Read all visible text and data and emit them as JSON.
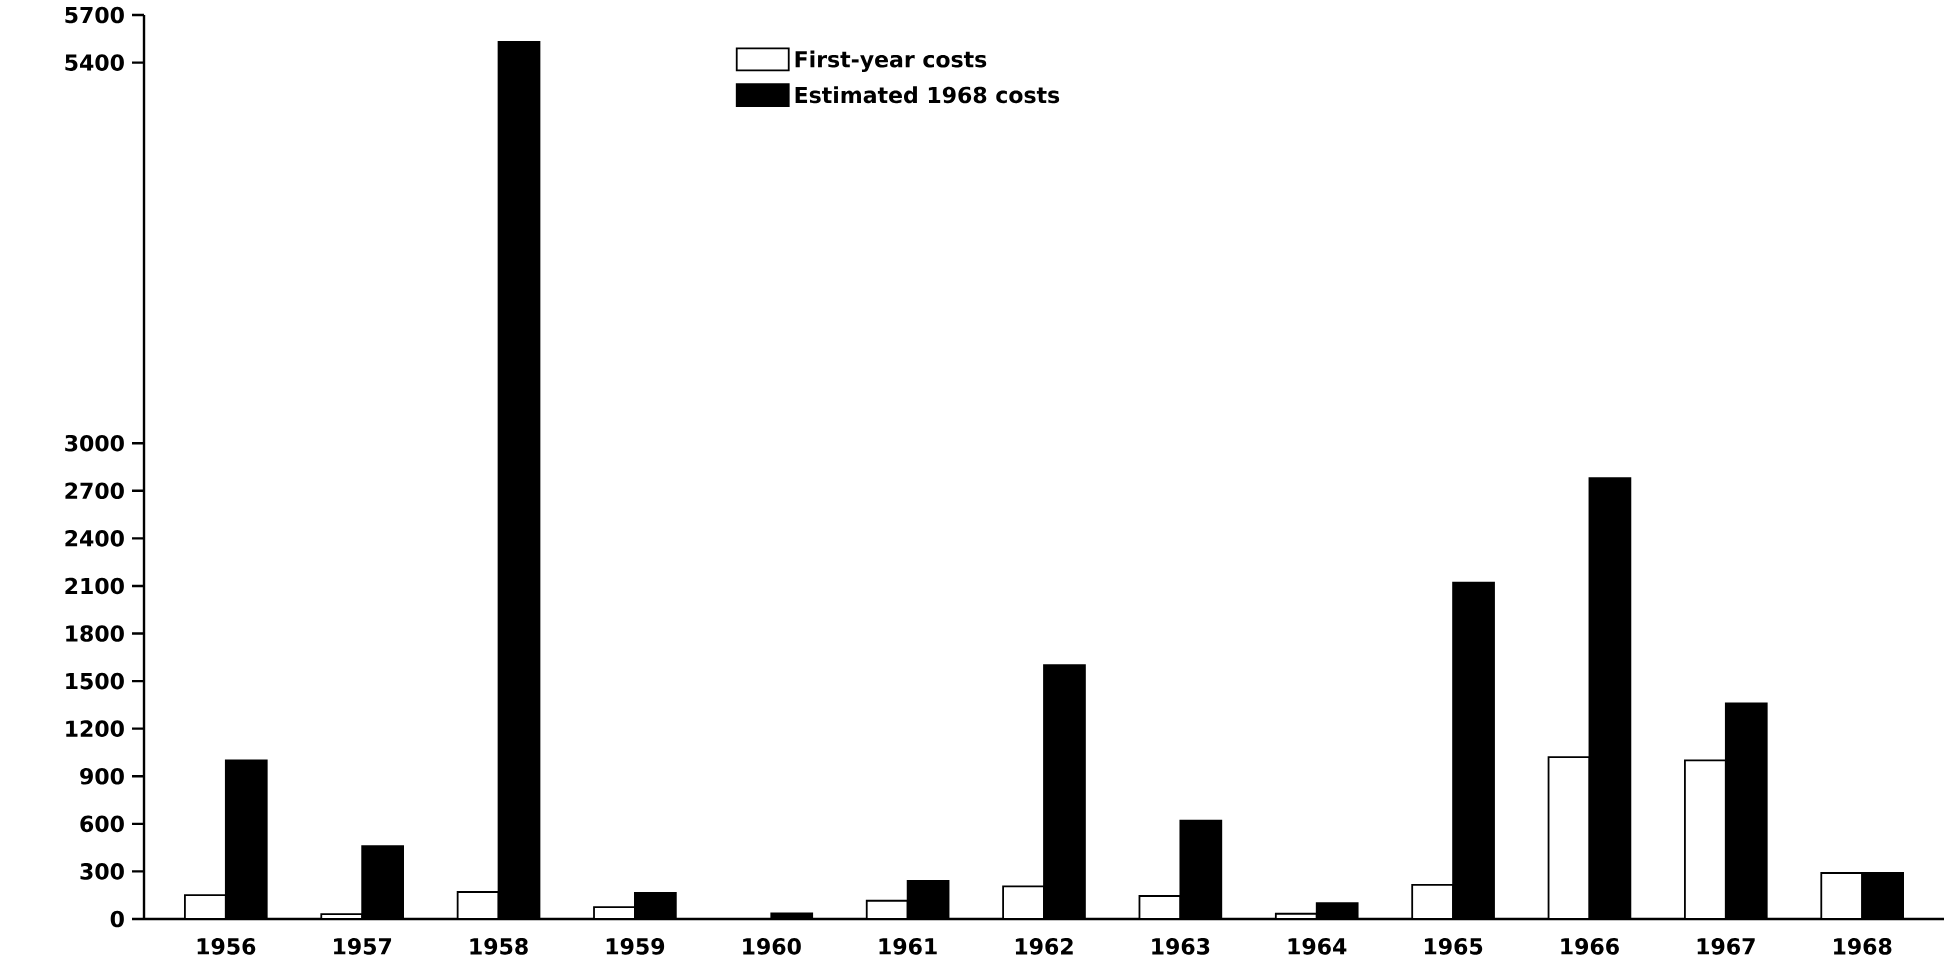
{
  "chart_data": {
    "type": "bar",
    "categories": [
      "1956",
      "1957",
      "1958",
      "1959",
      "1960",
      "1961",
      "1962",
      "1963",
      "1964",
      "1965",
      "1966",
      "1967",
      "1968"
    ],
    "series": [
      {
        "name": "First-year costs",
        "color": "#ffffff",
        "values": [
          150,
          30,
          170,
          75,
          null,
          115,
          205,
          145,
          33,
          215,
          1020,
          1000,
          290
        ]
      },
      {
        "name": "Estimated 1968 costs",
        "color": "#000000",
        "values": [
          1000,
          460,
          5530,
          165,
          35,
          240,
          1600,
          620,
          100,
          2120,
          2780,
          1360,
          290
        ]
      }
    ],
    "ylim": [
      0,
      5700
    ],
    "yticks": [
      0,
      300,
      600,
      900,
      1200,
      1500,
      1800,
      2100,
      2400,
      2700,
      3000,
      5400,
      5700
    ],
    "grid": false,
    "legend": "top"
  }
}
